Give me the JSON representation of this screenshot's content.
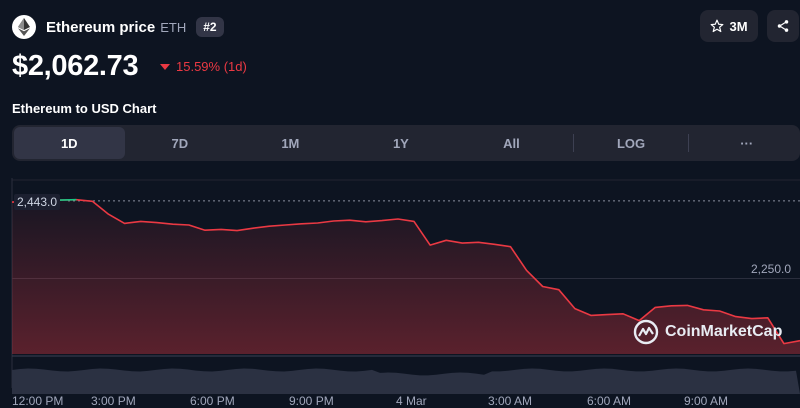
{
  "header": {
    "name": "Ethereum price",
    "symbol": "ETH",
    "rank": "#2"
  },
  "actions": {
    "watchlist_count": "3M",
    "star_icon": "star-icon",
    "share_icon": "share-icon"
  },
  "price": {
    "value": "$2,062.73",
    "change": "15.59% (1d)",
    "change_color": "#ea3943"
  },
  "chart_title": "Ethereum to USD Chart",
  "tabs": [
    {
      "label": "1D",
      "active": true
    },
    {
      "label": "7D",
      "active": false
    },
    {
      "label": "1M",
      "active": false
    },
    {
      "label": "1Y",
      "active": false
    },
    {
      "label": "All",
      "active": false
    },
    {
      "label": "LOG",
      "active": false
    },
    {
      "label": "···",
      "active": false
    }
  ],
  "chart_data": {
    "type": "line",
    "x_labels": [
      "12:00 PM",
      "3:00 PM",
      "6:00 PM",
      "9:00 PM",
      "4 Mar",
      "3:00 AM",
      "6:00 AM",
      "9:00 AM"
    ],
    "reference_value": "2,443.0",
    "gridline_label": "2,250.0",
    "x": [
      0,
      0.5,
      1,
      1.5,
      2,
      2.5,
      3,
      3.5,
      4,
      4.5,
      5,
      5.5,
      6,
      6.5,
      7,
      7.5,
      8,
      8.5,
      9,
      9.5,
      10,
      10.5,
      11,
      11.5,
      12,
      12.5,
      13,
      13.5,
      14,
      14.5,
      15,
      15.5,
      16,
      16.5,
      17,
      17.5,
      18,
      18.5,
      19,
      19.5,
      20,
      20.5,
      21,
      21.5,
      22,
      22.5,
      23,
      23.5,
      24,
      24.5
    ],
    "values": [
      2440,
      2441,
      2446,
      2445,
      2446,
      2442,
      2410,
      2387,
      2392,
      2389,
      2385,
      2383,
      2370,
      2372,
      2369,
      2375,
      2380,
      2383,
      2386,
      2388,
      2393,
      2395,
      2391,
      2394,
      2398,
      2392,
      2333,
      2345,
      2338,
      2340,
      2335,
      2329,
      2270,
      2230,
      2222,
      2175,
      2158,
      2160,
      2162,
      2145,
      2178,
      2182,
      2183,
      2172,
      2169,
      2155,
      2150,
      2152,
      2088,
      2095
    ],
    "ylim": [
      2062,
      2500
    ],
    "line_color": "#ea3943",
    "up_color": "#16c784",
    "watermark": "CoinMarketCap"
  }
}
